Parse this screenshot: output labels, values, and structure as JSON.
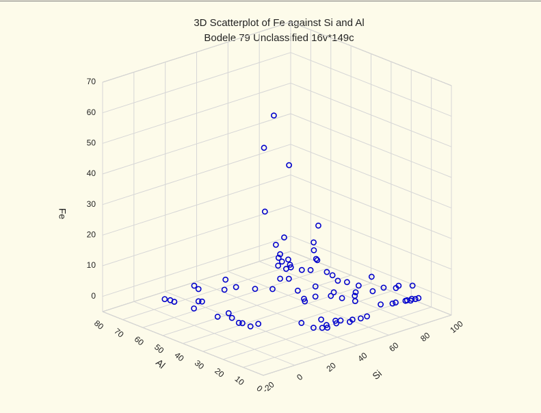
{
  "chart_data": {
    "type": "scatter3d",
    "title": "3D Scatterplot of Fe against Si and Al",
    "subtitle": "Bodele 79 Unclassified 16v*149c",
    "xlabel": "Si",
    "ylabel": "Al",
    "zlabel": "Fe",
    "xlim": [
      -20,
      100
    ],
    "ylim": [
      0,
      80
    ],
    "zlim": [
      -5,
      70
    ],
    "xticks": [
      -20,
      0,
      20,
      40,
      60,
      80,
      100
    ],
    "yticks": [
      0,
      10,
      20,
      30,
      40,
      50,
      60,
      70,
      80
    ],
    "zticks": [
      0,
      10,
      20,
      30,
      40,
      50,
      60,
      70
    ],
    "grid": true,
    "color": "#0000cc",
    "x": [
      -6,
      -5,
      -5,
      4,
      5,
      -4,
      0,
      4,
      11,
      18,
      19,
      -3,
      4,
      1,
      -1,
      0,
      0,
      5,
      38,
      33,
      40,
      31,
      51,
      42,
      48,
      38,
      52,
      42,
      41,
      56,
      47,
      51,
      42,
      45,
      42,
      47,
      42,
      45,
      41,
      52,
      55,
      58,
      59,
      69,
      66,
      68,
      69,
      50,
      52,
      54,
      53,
      36,
      44,
      76,
      76,
      69,
      83,
      80,
      60,
      65,
      67,
      72,
      73,
      74,
      76,
      77,
      79,
      88,
      21,
      21,
      31,
      26,
      35,
      39,
      46,
      50,
      37,
      42,
      35,
      43,
      38,
      24,
      28,
      33,
      62,
      64,
      57
    ],
    "y": [
      60,
      56,
      58,
      51,
      50,
      47,
      50,
      51,
      43,
      49,
      44,
      36,
      36,
      32,
      27,
      26,
      22,
      22,
      40,
      41,
      34,
      39,
      28,
      38,
      28,
      39,
      31,
      40,
      40,
      33,
      43,
      43,
      41,
      37,
      37,
      39,
      40,
      38,
      43,
      37,
      35,
      34,
      30,
      35,
      30,
      27,
      22,
      21,
      17,
      12,
      31,
      23,
      24,
      21,
      15,
      15,
      13,
      12,
      4,
      2,
      2,
      1,
      1,
      0,
      1,
      0,
      0,
      10,
      13,
      7,
      11,
      4,
      7,
      3,
      3,
      3,
      6,
      4,
      47,
      32,
      25,
      5,
      6,
      5,
      18,
      20,
      25
    ],
    "z": [
      2,
      2,
      2,
      2,
      2,
      2,
      8,
      6,
      10,
      4,
      6,
      2,
      2,
      2,
      2,
      2,
      2,
      2,
      60,
      50,
      45,
      30,
      25,
      20,
      20,
      18,
      16,
      14,
      13,
      12,
      10,
      10,
      10,
      10,
      10,
      10,
      6,
      6,
      2,
      8,
      8,
      11,
      8,
      4,
      4,
      4,
      4,
      4,
      4,
      4,
      4,
      4,
      4,
      6,
      4,
      4,
      4,
      4,
      4,
      4,
      4,
      4,
      4,
      4,
      4,
      4,
      4,
      4,
      2,
      2,
      2,
      2,
      2,
      2,
      2,
      2,
      2,
      2,
      2,
      4,
      4,
      2,
      2,
      2,
      4,
      2,
      3
    ]
  }
}
